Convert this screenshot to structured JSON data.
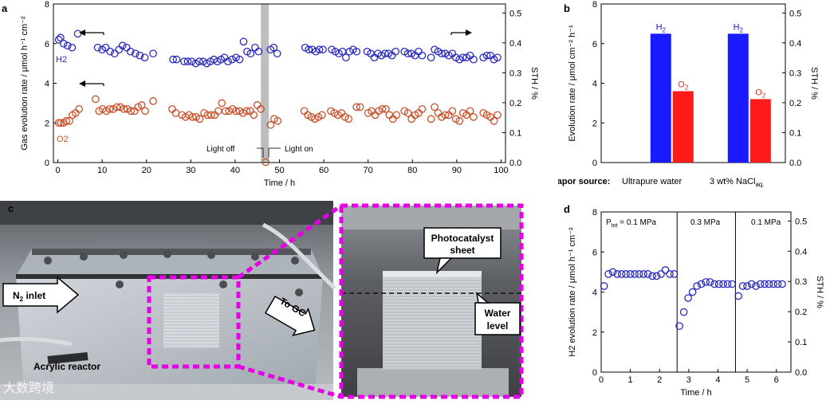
{
  "panels": {
    "a": {
      "letter": "a",
      "arrow_h2": "H2",
      "arrow_o2": "O2",
      "light_off": "Light off",
      "light_on": "Light on"
    },
    "b": {
      "letter": "b",
      "vapor_label": "Vapor source:",
      "cat1": "Ultrapure water",
      "cat2": "3 wt% NaCl",
      "cat2_sub": "aq."
    },
    "c": {
      "letter": "c",
      "n2_inlet": "N",
      "n2_sub": "2",
      "n2_rest": " inlet",
      "to_gc": "To GC",
      "reactor": "Acrylic reactor",
      "catalyst1": "Photocatalyst",
      "catalyst2": "sheet",
      "water1": "Water",
      "water2": "level",
      "watermark": "大数跨境"
    },
    "d": {
      "letter": "d",
      "seg1": "P",
      "seg1_sub": "tot",
      "seg1_val": " = 0.1 MPa",
      "seg2": "0.3 MPa",
      "seg3": "0.1 MPa"
    }
  },
  "chart_data": [
    {
      "id": "a",
      "type": "scatter",
      "xlabel": "Time / h",
      "ylabel": "Gas evolution rate / μmol h⁻¹ cm⁻²",
      "y2label": "STH / %",
      "xlim": [
        -1,
        101
      ],
      "ylim": [
        0,
        8
      ],
      "y2lim": [
        0,
        0.53
      ],
      "xticks": [
        0,
        10,
        20,
        30,
        40,
        50,
        60,
        70,
        80,
        90,
        100
      ],
      "yticks": [
        0,
        2,
        4,
        6,
        8
      ],
      "y2ticks": [
        0.0,
        0.1,
        0.2,
        0.3,
        0.4,
        0.5
      ],
      "y2ticklabels": [
        "0.0",
        "0.1",
        "0.2",
        "0.3",
        "0.4",
        "0.5"
      ],
      "shaded_x": [
        45.8,
        47.6
      ],
      "series": [
        {
          "name": "H2",
          "color": "#2b2bbf",
          "points": [
            [
              0.2,
              6.2
            ],
            [
              0.6,
              6.3
            ],
            [
              1.3,
              6.0
            ],
            [
              2.2,
              5.9
            ],
            [
              3.2,
              5.8
            ],
            [
              4.5,
              6.5
            ],
            [
              9,
              5.8
            ],
            [
              10,
              5.7
            ],
            [
              10.8,
              5.8
            ],
            [
              11.8,
              5.6
            ],
            [
              12.8,
              5.5
            ],
            [
              13.8,
              5.7
            ],
            [
              14.6,
              5.9
            ],
            [
              15.5,
              5.8
            ],
            [
              16.4,
              5.6
            ],
            [
              17.5,
              5.5
            ],
            [
              18.5,
              5.4
            ],
            [
              19.6,
              5.3
            ],
            [
              21.5,
              5.5
            ],
            [
              26,
              5.2
            ],
            [
              26.8,
              5.2
            ],
            [
              28.5,
              5.1
            ],
            [
              29.3,
              5.1
            ],
            [
              30.2,
              5.1
            ],
            [
              31.1,
              5.0
            ],
            [
              31.9,
              5.1
            ],
            [
              32.8,
              5.1
            ],
            [
              33.6,
              5.0
            ],
            [
              34.4,
              5.1
            ],
            [
              35.2,
              5.2
            ],
            [
              36.0,
              5.1
            ],
            [
              36.8,
              5.2
            ],
            [
              37.6,
              5.3
            ],
            [
              38.4,
              5.1
            ],
            [
              39.3,
              5.2
            ],
            [
              40.2,
              5.3
            ],
            [
              41.0,
              5.2
            ],
            [
              41.9,
              6.1
            ],
            [
              42.7,
              5.6
            ],
            [
              43.5,
              5.5
            ],
            [
              44.5,
              5.8
            ],
            [
              45.3,
              5.6
            ],
            [
              48.0,
              5.7
            ],
            [
              48.7,
              5.8
            ],
            [
              49.5,
              5.5
            ],
            [
              55.8,
              5.8
            ],
            [
              56.6,
              5.7
            ],
            [
              57.4,
              5.7
            ],
            [
              58.2,
              5.6
            ],
            [
              59.0,
              5.7
            ],
            [
              59.8,
              5.7
            ],
            [
              61.8,
              5.7
            ],
            [
              62.6,
              5.6
            ],
            [
              63.4,
              5.5
            ],
            [
              64.2,
              5.6
            ],
            [
              65.0,
              5.3
            ],
            [
              65.8,
              5.6
            ],
            [
              66.6,
              5.7
            ],
            [
              67.4,
              5.6
            ],
            [
              69.8,
              5.6
            ],
            [
              70.6,
              5.5
            ],
            [
              71.4,
              5.3
            ],
            [
              72.2,
              5.5
            ],
            [
              73.0,
              5.4
            ],
            [
              73.8,
              5.5
            ],
            [
              74.6,
              5.5
            ],
            [
              75.4,
              5.4
            ],
            [
              76.2,
              5.6
            ],
            [
              78.2,
              5.6
            ],
            [
              79.0,
              5.5
            ],
            [
              79.8,
              5.5
            ],
            [
              80.6,
              5.4
            ],
            [
              81.4,
              5.6
            ],
            [
              82.2,
              5.4
            ],
            [
              84.2,
              5.3
            ],
            [
              85.0,
              5.7
            ],
            [
              85.8,
              5.6
            ],
            [
              86.6,
              5.5
            ],
            [
              87.4,
              5.5
            ],
            [
              88.2,
              5.4
            ],
            [
              89.0,
              5.5
            ],
            [
              89.8,
              5.3
            ],
            [
              90.6,
              5.2
            ],
            [
              91.4,
              5.3
            ],
            [
              92.2,
              5.3
            ],
            [
              93.0,
              5.4
            ],
            [
              93.8,
              5.2
            ],
            [
              96.0,
              5.3
            ],
            [
              96.8,
              5.4
            ],
            [
              97.6,
              5.4
            ],
            [
              98.4,
              5.2
            ],
            [
              99.2,
              5.3
            ]
          ]
        },
        {
          "name": "O2",
          "color": "#c8512a",
          "points": [
            [
              0.2,
              2.0
            ],
            [
              0.7,
              2.0
            ],
            [
              1.3,
              2.0
            ],
            [
              1.9,
              2.1
            ],
            [
              2.6,
              2.1
            ],
            [
              3.3,
              2.4
            ],
            [
              4.0,
              2.5
            ],
            [
              4.8,
              2.7
            ],
            [
              8.5,
              3.2
            ],
            [
              9.3,
              2.6
            ],
            [
              10.1,
              2.7
            ],
            [
              10.9,
              2.6
            ],
            [
              11.7,
              2.7
            ],
            [
              12.5,
              2.7
            ],
            [
              13.3,
              2.8
            ],
            [
              14.1,
              2.8
            ],
            [
              14.9,
              2.7
            ],
            [
              15.7,
              2.7
            ],
            [
              16.5,
              2.6
            ],
            [
              17.3,
              2.6
            ],
            [
              18.1,
              2.8
            ],
            [
              18.9,
              2.9
            ],
            [
              19.7,
              2.6
            ],
            [
              21.5,
              3.1
            ],
            [
              25.8,
              2.7
            ],
            [
              26.6,
              2.5
            ],
            [
              28.0,
              2.4
            ],
            [
              28.8,
              2.3
            ],
            [
              29.6,
              2.4
            ],
            [
              30.4,
              2.3
            ],
            [
              31.2,
              2.3
            ],
            [
              32.0,
              2.2
            ],
            [
              33.0,
              2.5
            ],
            [
              33.8,
              2.4
            ],
            [
              34.6,
              2.4
            ],
            [
              35.4,
              2.4
            ],
            [
              36.2,
              2.6
            ],
            [
              37.0,
              3.0
            ],
            [
              37.8,
              2.6
            ],
            [
              38.6,
              2.6
            ],
            [
              39.4,
              2.7
            ],
            [
              40.2,
              2.6
            ],
            [
              41.0,
              2.6
            ],
            [
              41.8,
              2.5
            ],
            [
              42.6,
              2.6
            ],
            [
              43.4,
              2.6
            ],
            [
              44.2,
              2.4
            ],
            [
              45.0,
              2.9
            ],
            [
              45.8,
              2.7
            ],
            [
              46.9,
              0.02
            ],
            [
              48.0,
              1.9
            ],
            [
              48.8,
              2.2
            ],
            [
              49.6,
              2.1
            ],
            [
              55.6,
              2.6
            ],
            [
              56.4,
              2.4
            ],
            [
              57.2,
              2.3
            ],
            [
              58.0,
              2.2
            ],
            [
              58.8,
              2.3
            ],
            [
              59.6,
              2.4
            ],
            [
              61.6,
              2.6
            ],
            [
              62.4,
              2.5
            ],
            [
              63.2,
              2.4
            ],
            [
              64.0,
              2.5
            ],
            [
              64.8,
              2.3
            ],
            [
              65.6,
              2.2
            ],
            [
              67.4,
              2.8
            ],
            [
              68.2,
              2.8
            ],
            [
              70.0,
              2.5
            ],
            [
              70.8,
              2.6
            ],
            [
              71.6,
              2.4
            ],
            [
              72.4,
              2.6
            ],
            [
              73.2,
              2.7
            ],
            [
              74.0,
              2.7
            ],
            [
              74.8,
              2.4
            ],
            [
              75.6,
              2.2
            ],
            [
              76.4,
              2.4
            ],
            [
              78.2,
              2.6
            ],
            [
              79.0,
              2.5
            ],
            [
              79.8,
              2.2
            ],
            [
              80.6,
              2.4
            ],
            [
              81.4,
              2.5
            ],
            [
              82.2,
              2.7
            ],
            [
              84.2,
              2.2
            ],
            [
              85.0,
              2.8
            ],
            [
              85.8,
              2.5
            ],
            [
              86.6,
              2.3
            ],
            [
              87.4,
              2.4
            ],
            [
              88.2,
              2.4
            ],
            [
              89.0,
              2.6
            ],
            [
              89.8,
              2.2
            ],
            [
              90.6,
              2.1
            ],
            [
              91.4,
              2.5
            ],
            [
              92.2,
              2.4
            ],
            [
              93.0,
              2.6
            ],
            [
              93.8,
              2.3
            ],
            [
              96.0,
              2.5
            ],
            [
              96.8,
              2.4
            ],
            [
              97.6,
              2.3
            ],
            [
              98.4,
              2.1
            ],
            [
              99.2,
              2.4
            ]
          ]
        }
      ]
    },
    {
      "id": "b",
      "type": "bar",
      "ylabel": "Evolution rate / μmol cm⁻² h⁻¹",
      "y2label": "STH / %",
      "ylim": [
        0,
        8
      ],
      "y2lim": [
        0,
        0.53
      ],
      "yticks": [
        0,
        2,
        4,
        6,
        8
      ],
      "y2ticks": [
        0.0,
        0.1,
        0.2,
        0.3,
        0.4,
        0.5
      ],
      "y2ticklabels": [
        "0.0",
        "0.1",
        "0.2",
        "0.3",
        "0.4",
        "0.5"
      ],
      "categories": [
        "Ultrapure water",
        "3 wt% NaCl aq."
      ],
      "series": [
        {
          "name": "H2",
          "color": "#1a1aff",
          "label_color": "#1a1acc",
          "values": [
            6.5,
            6.5
          ]
        },
        {
          "name": "O2",
          "color": "#ff1a1a",
          "label_color": "#cc3322",
          "values": [
            3.6,
            3.2
          ]
        }
      ]
    },
    {
      "id": "d",
      "type": "scatter",
      "xlabel": "Time / h",
      "ylabel": "H2 evolution rate / μmol h⁻¹ cm⁻²",
      "y2label": "STH / %",
      "xlim": [
        0,
        6.5
      ],
      "ylim": [
        0,
        8
      ],
      "y2lim": [
        0,
        0.53
      ],
      "xticks": [
        0,
        1,
        2,
        3,
        4,
        5,
        6
      ],
      "yticks": [
        0,
        2,
        4,
        6,
        8
      ],
      "y2ticks": [
        0.0,
        0.1,
        0.2,
        0.3,
        0.4,
        0.5
      ],
      "y2ticklabels": [
        "0.0",
        "0.1",
        "0.2",
        "0.3",
        "0.4",
        "0.5"
      ],
      "vlines": [
        2.6,
        4.6
      ],
      "series": [
        {
          "name": "H2",
          "color": "#2b2bbf",
          "points": [
            [
              0.1,
              4.3
            ],
            [
              0.25,
              4.9
            ],
            [
              0.4,
              5.0
            ],
            [
              0.55,
              4.9
            ],
            [
              0.7,
              4.9
            ],
            [
              0.85,
              4.9
            ],
            [
              1.0,
              4.9
            ],
            [
              1.15,
              4.9
            ],
            [
              1.3,
              4.9
            ],
            [
              1.45,
              4.9
            ],
            [
              1.6,
              4.9
            ],
            [
              1.75,
              4.8
            ],
            [
              1.9,
              4.8
            ],
            [
              2.05,
              4.9
            ],
            [
              2.2,
              5.1
            ],
            [
              2.35,
              4.9
            ],
            [
              2.5,
              4.9
            ],
            [
              2.68,
              2.3
            ],
            [
              2.83,
              3.0
            ],
            [
              2.98,
              3.7
            ],
            [
              3.13,
              4.0
            ],
            [
              3.28,
              4.3
            ],
            [
              3.43,
              4.4
            ],
            [
              3.58,
              4.5
            ],
            [
              3.73,
              4.5
            ],
            [
              3.88,
              4.4
            ],
            [
              4.03,
              4.4
            ],
            [
              4.18,
              4.4
            ],
            [
              4.33,
              4.4
            ],
            [
              4.48,
              4.4
            ],
            [
              4.7,
              3.8
            ],
            [
              4.85,
              4.3
            ],
            [
              5.0,
              4.3
            ],
            [
              5.15,
              4.4
            ],
            [
              5.3,
              4.3
            ],
            [
              5.45,
              4.4
            ],
            [
              5.6,
              4.4
            ],
            [
              5.75,
              4.4
            ],
            [
              5.9,
              4.4
            ],
            [
              6.05,
              4.4
            ],
            [
              6.2,
              4.4
            ]
          ]
        }
      ]
    }
  ]
}
